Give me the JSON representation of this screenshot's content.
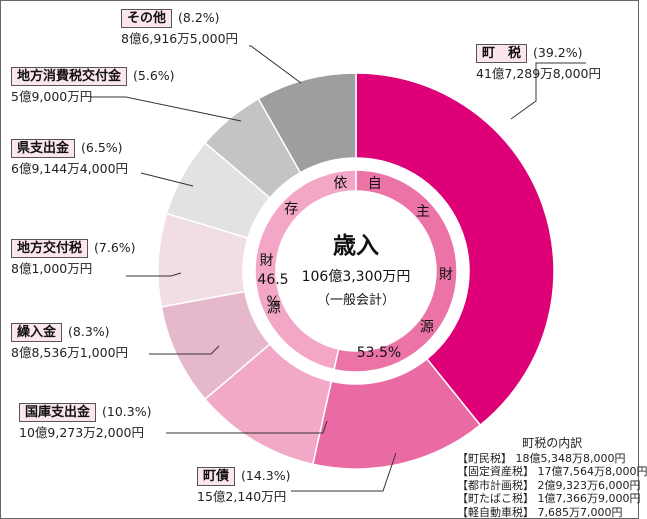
{
  "chart_data": {
    "type": "pie",
    "title": "歳入",
    "total": "106億3,300万円",
    "subtitle": "（一般会計）",
    "categories": [
      "町　税",
      "町債",
      "国庫支出金",
      "繰入金",
      "地方交付税",
      "県支出金",
      "地方消費税交付金",
      "その他"
    ],
    "values": [
      39.2,
      14.3,
      10.3,
      8.3,
      7.6,
      6.5,
      5.6,
      8.2
    ],
    "labels": [
      {
        "name": "町　税",
        "pct": "(39.2%)",
        "amount": "41億7,289万8,000円"
      },
      {
        "name": "町債",
        "pct": "(14.3%)",
        "amount": "15億2,140万円"
      },
      {
        "name": "国庫支出金",
        "pct": "(10.3%)",
        "amount": "10億9,273万2,000円"
      },
      {
        "name": "繰入金",
        "pct": "(8.3%)",
        "amount": "8億8,536万1,000円"
      },
      {
        "name": "地方交付税",
        "pct": "(7.6%)",
        "amount": "8億1,000万円"
      },
      {
        "name": "県支出金",
        "pct": "(6.5%)",
        "amount": "6億9,144万4,000円"
      },
      {
        "name": "地方消費税交付金",
        "pct": "(5.6%)",
        "amount": "5億9,000万円"
      },
      {
        "name": "その他",
        "pct": "(8.2%)",
        "amount": "8億6,916万5,000円"
      }
    ],
    "groups": [
      {
        "name": "自主財源",
        "pct": "53.5%"
      },
      {
        "name": "依存財源",
        "pct": "46.5%"
      }
    ],
    "colors": [
      "#de0076",
      "#ea6aa3",
      "#f2a9c7",
      "#e5b8cb",
      "#f1dee5",
      "#e2e2e2",
      "#c4c4c4",
      "#9e9e9e"
    ],
    "group_colors": [
      "#ec73a6",
      "#f3a6c5"
    ]
  },
  "breakdown": {
    "title": "町税の内訳",
    "rows": [
      "【町民税】 18億5,348万8,000円",
      "【固定資産税】 17億7,564万8,000円",
      "【都市計画税】 2億9,323万6,000円",
      "【町たばこ税】 1億7,366万9,000円",
      "【軽自動車税】 7,685万7,000円"
    ]
  }
}
